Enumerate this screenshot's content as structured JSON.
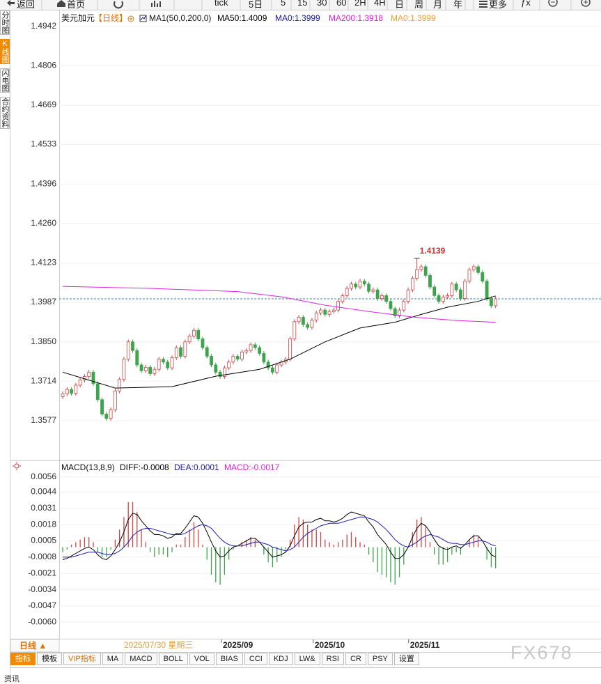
{
  "toolbar": [
    "返回",
    "首页",
    "tick",
    "5日",
    "5",
    "15",
    "30",
    "60",
    "2H",
    "4H",
    "日",
    "周",
    "月",
    "年",
    "更多",
    "ƒx"
  ],
  "sidebar": [
    "分时图",
    "K线图",
    "闪电图",
    "合约资料"
  ],
  "chart_data": [
    {
      "type": "candlestick",
      "title": "美元加元",
      "period": "【日线】",
      "indicator": "MA1(50,0,200,0)",
      "up_color": "#d04545",
      "down_color": "#3fa34d",
      "last_price": 1.3999,
      "last_price_color": "#3a86a8",
      "max_label": "1.4139",
      "max_label_color": "#d03030",
      "grid": true,
      "ylim": [
        1.3442,
        1.4985
      ],
      "yticks": [
        1.4942,
        1.4806,
        1.4669,
        1.4533,
        1.4396,
        {
          "value": 1.426,
          "label": "1.4260"
        },
        1.4123,
        1.3987,
        {
          "value": 1.385,
          "label": "1.3850"
        },
        1.3714,
        1.3577
      ],
      "xlim": [
        -0.8,
        123.1
      ],
      "xticks": [
        {
          "value": 36.3,
          "label": "2025/09"
        },
        {
          "value": 57.3,
          "label": "2025/10"
        },
        {
          "value": 79.1,
          "label": "2025/11"
        }
      ],
      "open": [
        1.366,
        1.367,
        1.3685,
        1.3672,
        1.37,
        1.3718,
        1.373,
        1.3745,
        1.3705,
        1.365,
        1.36,
        1.3585,
        1.3615,
        1.368,
        1.372,
        1.379,
        1.385,
        1.382,
        1.377,
        1.375,
        1.3762,
        1.374,
        1.3755,
        1.379,
        1.378,
        1.376,
        1.3795,
        1.383,
        1.38,
        1.385,
        1.387,
        1.389,
        1.386,
        1.383,
        1.38,
        1.377,
        1.3745,
        1.373,
        1.376,
        1.378,
        1.38,
        1.379,
        1.3815,
        1.382,
        1.384,
        1.383,
        1.381,
        1.378,
        1.376,
        1.3745,
        1.377,
        1.378,
        1.379,
        1.386,
        1.392,
        1.3935,
        1.391,
        1.39,
        1.3925,
        1.395,
        1.396,
        1.3945,
        1.3955,
        1.396,
        1.399,
        1.401,
        1.4035,
        1.405,
        1.404,
        1.406,
        1.405,
        1.4025,
        1.403,
        1.4,
        1.401,
        1.399,
        1.3965,
        1.394,
        1.396,
        1.399,
        1.403,
        1.407,
        1.41,
        1.411,
        1.408,
        1.404,
        1.401,
        1.399,
        1.4005,
        1.401,
        1.405,
        1.403,
        1.4,
        1.406,
        1.41,
        1.411,
        1.409,
        1.406,
        1.4,
        1.3975
      ],
      "high": [
        1.3678,
        1.3693,
        1.3693,
        1.3708,
        1.3726,
        1.3738,
        1.3753,
        1.3753,
        1.3713,
        1.3658,
        1.3608,
        1.3623,
        1.3688,
        1.3728,
        1.3798,
        1.3858,
        1.3858,
        1.3828,
        1.3778,
        1.377,
        1.377,
        1.3763,
        1.3798,
        1.3798,
        1.3788,
        1.3803,
        1.3838,
        1.3838,
        1.3858,
        1.3878,
        1.3898,
        1.3898,
        1.3868,
        1.3838,
        1.3808,
        1.3778,
        1.3753,
        1.3768,
        1.3788,
        1.3808,
        1.3808,
        1.3823,
        1.3828,
        1.3848,
        1.3848,
        1.3838,
        1.3818,
        1.3788,
        1.3768,
        1.3778,
        1.3788,
        1.3798,
        1.3868,
        1.3928,
        1.3943,
        1.3943,
        1.3918,
        1.3933,
        1.3958,
        1.3968,
        1.3968,
        1.3963,
        1.3968,
        1.3998,
        1.4018,
        1.4043,
        1.4058,
        1.4058,
        1.4068,
        1.4068,
        1.4058,
        1.4038,
        1.4038,
        1.4018,
        1.4018,
        1.3998,
        1.3973,
        1.3968,
        1.3998,
        1.4038,
        1.4078,
        1.4139,
        1.4118,
        1.4118,
        1.4088,
        1.4048,
        1.4018,
        1.4013,
        1.4018,
        1.4058,
        1.4058,
        1.4038,
        1.4068,
        1.4108,
        1.4118,
        1.4118,
        1.4098,
        1.4068,
        1.4008,
        1.4007
      ],
      "low": [
        1.3652,
        1.3662,
        1.3664,
        1.3664,
        1.3692,
        1.371,
        1.3722,
        1.3697,
        1.3642,
        1.3592,
        1.3577,
        1.3577,
        1.3607,
        1.3672,
        1.3712,
        1.3782,
        1.3812,
        1.3762,
        1.3742,
        1.3742,
        1.3732,
        1.3732,
        1.3747,
        1.3772,
        1.3752,
        1.3752,
        1.3787,
        1.3792,
        1.3792,
        1.3842,
        1.3862,
        1.3852,
        1.3822,
        1.3792,
        1.3762,
        1.3737,
        1.3722,
        1.3722,
        1.3752,
        1.3772,
        1.3782,
        1.3782,
        1.3807,
        1.3812,
        1.3822,
        1.3802,
        1.3772,
        1.3752,
        1.3737,
        1.3737,
        1.3762,
        1.3772,
        1.3782,
        1.3852,
        1.3912,
        1.3902,
        1.3892,
        1.3892,
        1.3917,
        1.3942,
        1.3937,
        1.3937,
        1.3947,
        1.3952,
        1.3982,
        1.4002,
        1.4027,
        1.4032,
        1.4032,
        1.4042,
        1.4017,
        1.4017,
        1.3992,
        1.3992,
        1.3982,
        1.3957,
        1.3932,
        1.3932,
        1.3952,
        1.3982,
        1.4022,
        1.4062,
        1.4092,
        1.4072,
        1.4032,
        1.4002,
        1.3982,
        1.3982,
        1.3997,
        1.4002,
        1.4022,
        1.3992,
        1.3992,
        1.4052,
        1.4092,
        1.4082,
        1.4052,
        1.3992,
        1.3967,
        1.3967
      ],
      "close": [
        1.367,
        1.3685,
        1.3672,
        1.37,
        1.3718,
        1.373,
        1.3745,
        1.3705,
        1.365,
        1.36,
        1.3585,
        1.3615,
        1.368,
        1.372,
        1.379,
        1.385,
        1.382,
        1.377,
        1.375,
        1.3762,
        1.374,
        1.3755,
        1.379,
        1.378,
        1.376,
        1.3795,
        1.383,
        1.38,
        1.385,
        1.387,
        1.389,
        1.386,
        1.383,
        1.38,
        1.377,
        1.3745,
        1.373,
        1.376,
        1.378,
        1.38,
        1.379,
        1.3815,
        1.382,
        1.384,
        1.383,
        1.381,
        1.378,
        1.376,
        1.3745,
        1.377,
        1.378,
        1.379,
        1.386,
        1.392,
        1.3935,
        1.391,
        1.39,
        1.3925,
        1.395,
        1.396,
        1.3945,
        1.3955,
        1.396,
        1.399,
        1.401,
        1.4035,
        1.405,
        1.404,
        1.406,
        1.405,
        1.4025,
        1.403,
        1.4,
        1.401,
        1.399,
        1.3965,
        1.394,
        1.396,
        1.399,
        1.403,
        1.407,
        1.41,
        1.411,
        1.408,
        1.404,
        1.401,
        1.399,
        1.4005,
        1.401,
        1.405,
        1.403,
        1.4,
        1.406,
        1.41,
        1.411,
        1.409,
        1.406,
        1.4,
        1.3975,
        1.3999
      ],
      "series": [
        {
          "name": "MA50:1.4009",
          "color": "#000000",
          "x": [
            0,
            12,
            25,
            35,
            45,
            52,
            60,
            68,
            76,
            82,
            88,
            95,
            99
          ],
          "values": [
            1.3745,
            1.369,
            1.3695,
            1.3731,
            1.3755,
            1.379,
            1.385,
            1.3898,
            1.3918,
            1.3945,
            1.397,
            1.399,
            1.4009
          ]
        },
        {
          "name": "MA200:1.3918",
          "color": "#e020e0",
          "x": [
            0,
            20,
            40,
            50,
            60,
            70,
            80,
            90,
            99
          ],
          "values": [
            1.4042,
            1.4035,
            1.4024,
            1.4006,
            1.3977,
            1.3955,
            1.3936,
            1.3924,
            1.3918
          ]
        }
      ],
      "extra_legend": [
        {
          "text": "MA0:1.3999",
          "color": "#1a1aa0"
        },
        {
          "text": "MA0:1.3999",
          "color": "#f0a030"
        }
      ]
    },
    {
      "type": "macd",
      "title": "MACD(13,8,9)",
      "xlim": [
        -0.8,
        123.1
      ],
      "ylim": [
        -0.0072,
        0.0067
      ],
      "grid": true,
      "yticks": [
        0.0056,
        0.0044,
        0.0031,
        0.0018,
        0.0005,
        -0.0008,
        -0.0021,
        -0.0034,
        -0.0047,
        {
          "value": -0.006,
          "label": "-0.0060"
        }
      ],
      "series": [
        {
          "name": "DIFF:-0.0008",
          "color": "#000000",
          "values": [
            -0.001,
            -0.0009,
            -0.0007,
            -0.0005,
            -0.0003,
            -0.0001,
            0,
            -0.0002,
            -0.0006,
            -0.0009,
            -0.001,
            -0.0007,
            -0.0002,
            0.0004,
            0.0012,
            0.0022,
            0.0027,
            0.0026,
            0.0021,
            0.0017,
            0.0013,
            0.001,
            0.001,
            0.0009,
            0.0007,
            0.0008,
            0.0011,
            0.0011,
            0.0015,
            0.002,
            0.0025,
            0.0024,
            0.0019,
            0.0012,
            0.0004,
            -0.0003,
            -0.0008,
            -0.0007,
            -0.0003,
            0,
            0.0001,
            0.0003,
            0.0005,
            0.0007,
            0.0007,
            0.0004,
            0,
            -0.0004,
            -0.0008,
            -0.0007,
            -0.0006,
            -0.0004,
            0.0001,
            0.0009,
            0.0016,
            0.0019,
            0.002,
            0.002,
            0.0022,
            0.0023,
            0.0021,
            0.0021,
            0.002,
            0.0021,
            0.0023,
            0.0026,
            0.0028,
            0.0027,
            0.0026,
            0.0025,
            0.002,
            0.0016,
            0.001,
            0.0006,
            0.0002,
            -0.0004,
            -0.0009,
            -0.0009,
            -0.0006,
            0,
            0.0008,
            0.0015,
            0.0019,
            0.0017,
            0.0012,
            0.0006,
            0.0001,
            -0.0001,
            -0.0002,
            0,
            0.0001,
            -0.0001,
            0.0002,
            0.0006,
            0.0009,
            0.0009,
            0.0005,
            -0.0001,
            -0.0006,
            -0.0008
          ]
        },
        {
          "name": "DEA:0.0001",
          "color": "#1a1ab0",
          "values": [
            -0.0008,
            -0.0008,
            -0.0008,
            -0.0007,
            -0.0006,
            -0.0005,
            -0.0004,
            -0.0004,
            -0.0004,
            -0.0005,
            -0.0006,
            -0.0006,
            -0.0005,
            -0.0003,
            0,
            0.0004,
            0.0009,
            0.0012,
            0.0014,
            0.0015,
            0.0015,
            0.0014,
            0.0013,
            0.0012,
            0.0011,
            0.001,
            0.001,
            0.001,
            0.0011,
            0.0013,
            0.0015,
            0.0017,
            0.0018,
            0.0017,
            0.0015,
            0.0011,
            0.0007,
            0.0004,
            0.0002,
            0.0001,
            0.0001,
            0.0001,
            0.0002,
            0.0003,
            0.0004,
            0.0004,
            0.0003,
            0.0002,
            0,
            -0.0001,
            -0.0002,
            -0.0003,
            -0.0002,
            0,
            0.0004,
            0.0008,
            0.0011,
            0.0013,
            0.0015,
            0.0017,
            0.0018,
            0.0019,
            0.0019,
            0.0019,
            0.002,
            0.0021,
            0.0022,
            0.0023,
            0.0024,
            0.0024,
            0.0023,
            0.0022,
            0.002,
            0.0017,
            0.0014,
            0.001,
            0.0006,
            0.0003,
            0.0001,
            0,
            0.0002,
            0.0004,
            0.0007,
            0.0009,
            0.001,
            0.0009,
            0.0008,
            0.0006,
            0.0004,
            0.0003,
            0.0003,
            0.0002,
            0.0002,
            0.0003,
            0.0004,
            0.0005,
            0.0005,
            0.0004,
            0.0002,
            0.0001
          ]
        },
        {
          "name": "MACD:-0.0017",
          "color": "#e020e0",
          "up_color": "#d04545",
          "down_color": "#3fa34d",
          "values": [
            -0.0004,
            -0.0002,
            0.0002,
            0.0004,
            0.0006,
            0.0008,
            0.0008,
            0.0004,
            -0.0004,
            -0.0008,
            -0.0008,
            -0.0002,
            0.0006,
            0.0014,
            0.0024,
            0.0036,
            0.0036,
            0.0028,
            0.0014,
            0.0004,
            -0.0004,
            -0.0008,
            -0.0006,
            -0.0006,
            -0.0008,
            -0.0004,
            0.0002,
            0.0002,
            0.0008,
            0.0014,
            0.002,
            0.0014,
            0.0002,
            -0.001,
            -0.0022,
            -0.0028,
            -0.003,
            -0.0022,
            -0.001,
            -0.0002,
            0,
            0.0004,
            0.0006,
            0.0008,
            0.0006,
            0,
            -0.0006,
            -0.0012,
            -0.0016,
            -0.0012,
            -0.0008,
            -0.0002,
            0.0006,
            0.0018,
            0.0024,
            0.0022,
            0.0018,
            0.0014,
            0.0014,
            0.0012,
            0.0006,
            0.0004,
            0.0002,
            0.0004,
            0.0006,
            0.001,
            0.0012,
            0.0008,
            0.0004,
            0.0002,
            -0.0006,
            -0.0012,
            -0.002,
            -0.0022,
            -0.0024,
            -0.0028,
            -0.003,
            -0.0024,
            -0.0014,
            0,
            0.0012,
            0.0022,
            0.0024,
            0.0016,
            0.0004,
            -0.0006,
            -0.0014,
            -0.0014,
            -0.0012,
            -0.0006,
            -0.0004,
            -0.0006,
            0,
            0.0006,
            0.001,
            0.0008,
            0,
            -0.001,
            -0.0016,
            -0.0017
          ]
        }
      ]
    }
  ],
  "date_bar": {
    "period": "日线 ▲",
    "cursor_date": "2025/07/30 星期三"
  },
  "tabs": [
    "指标",
    "模板",
    "VIP指标",
    "MA",
    "MACD",
    "BOLL",
    "VOL",
    "BIAS",
    "CCI",
    "KDJ",
    "LW&",
    "RSI",
    "CR",
    "PSY",
    "设置"
  ],
  "watermark": "FX678",
  "footer": "资讯"
}
